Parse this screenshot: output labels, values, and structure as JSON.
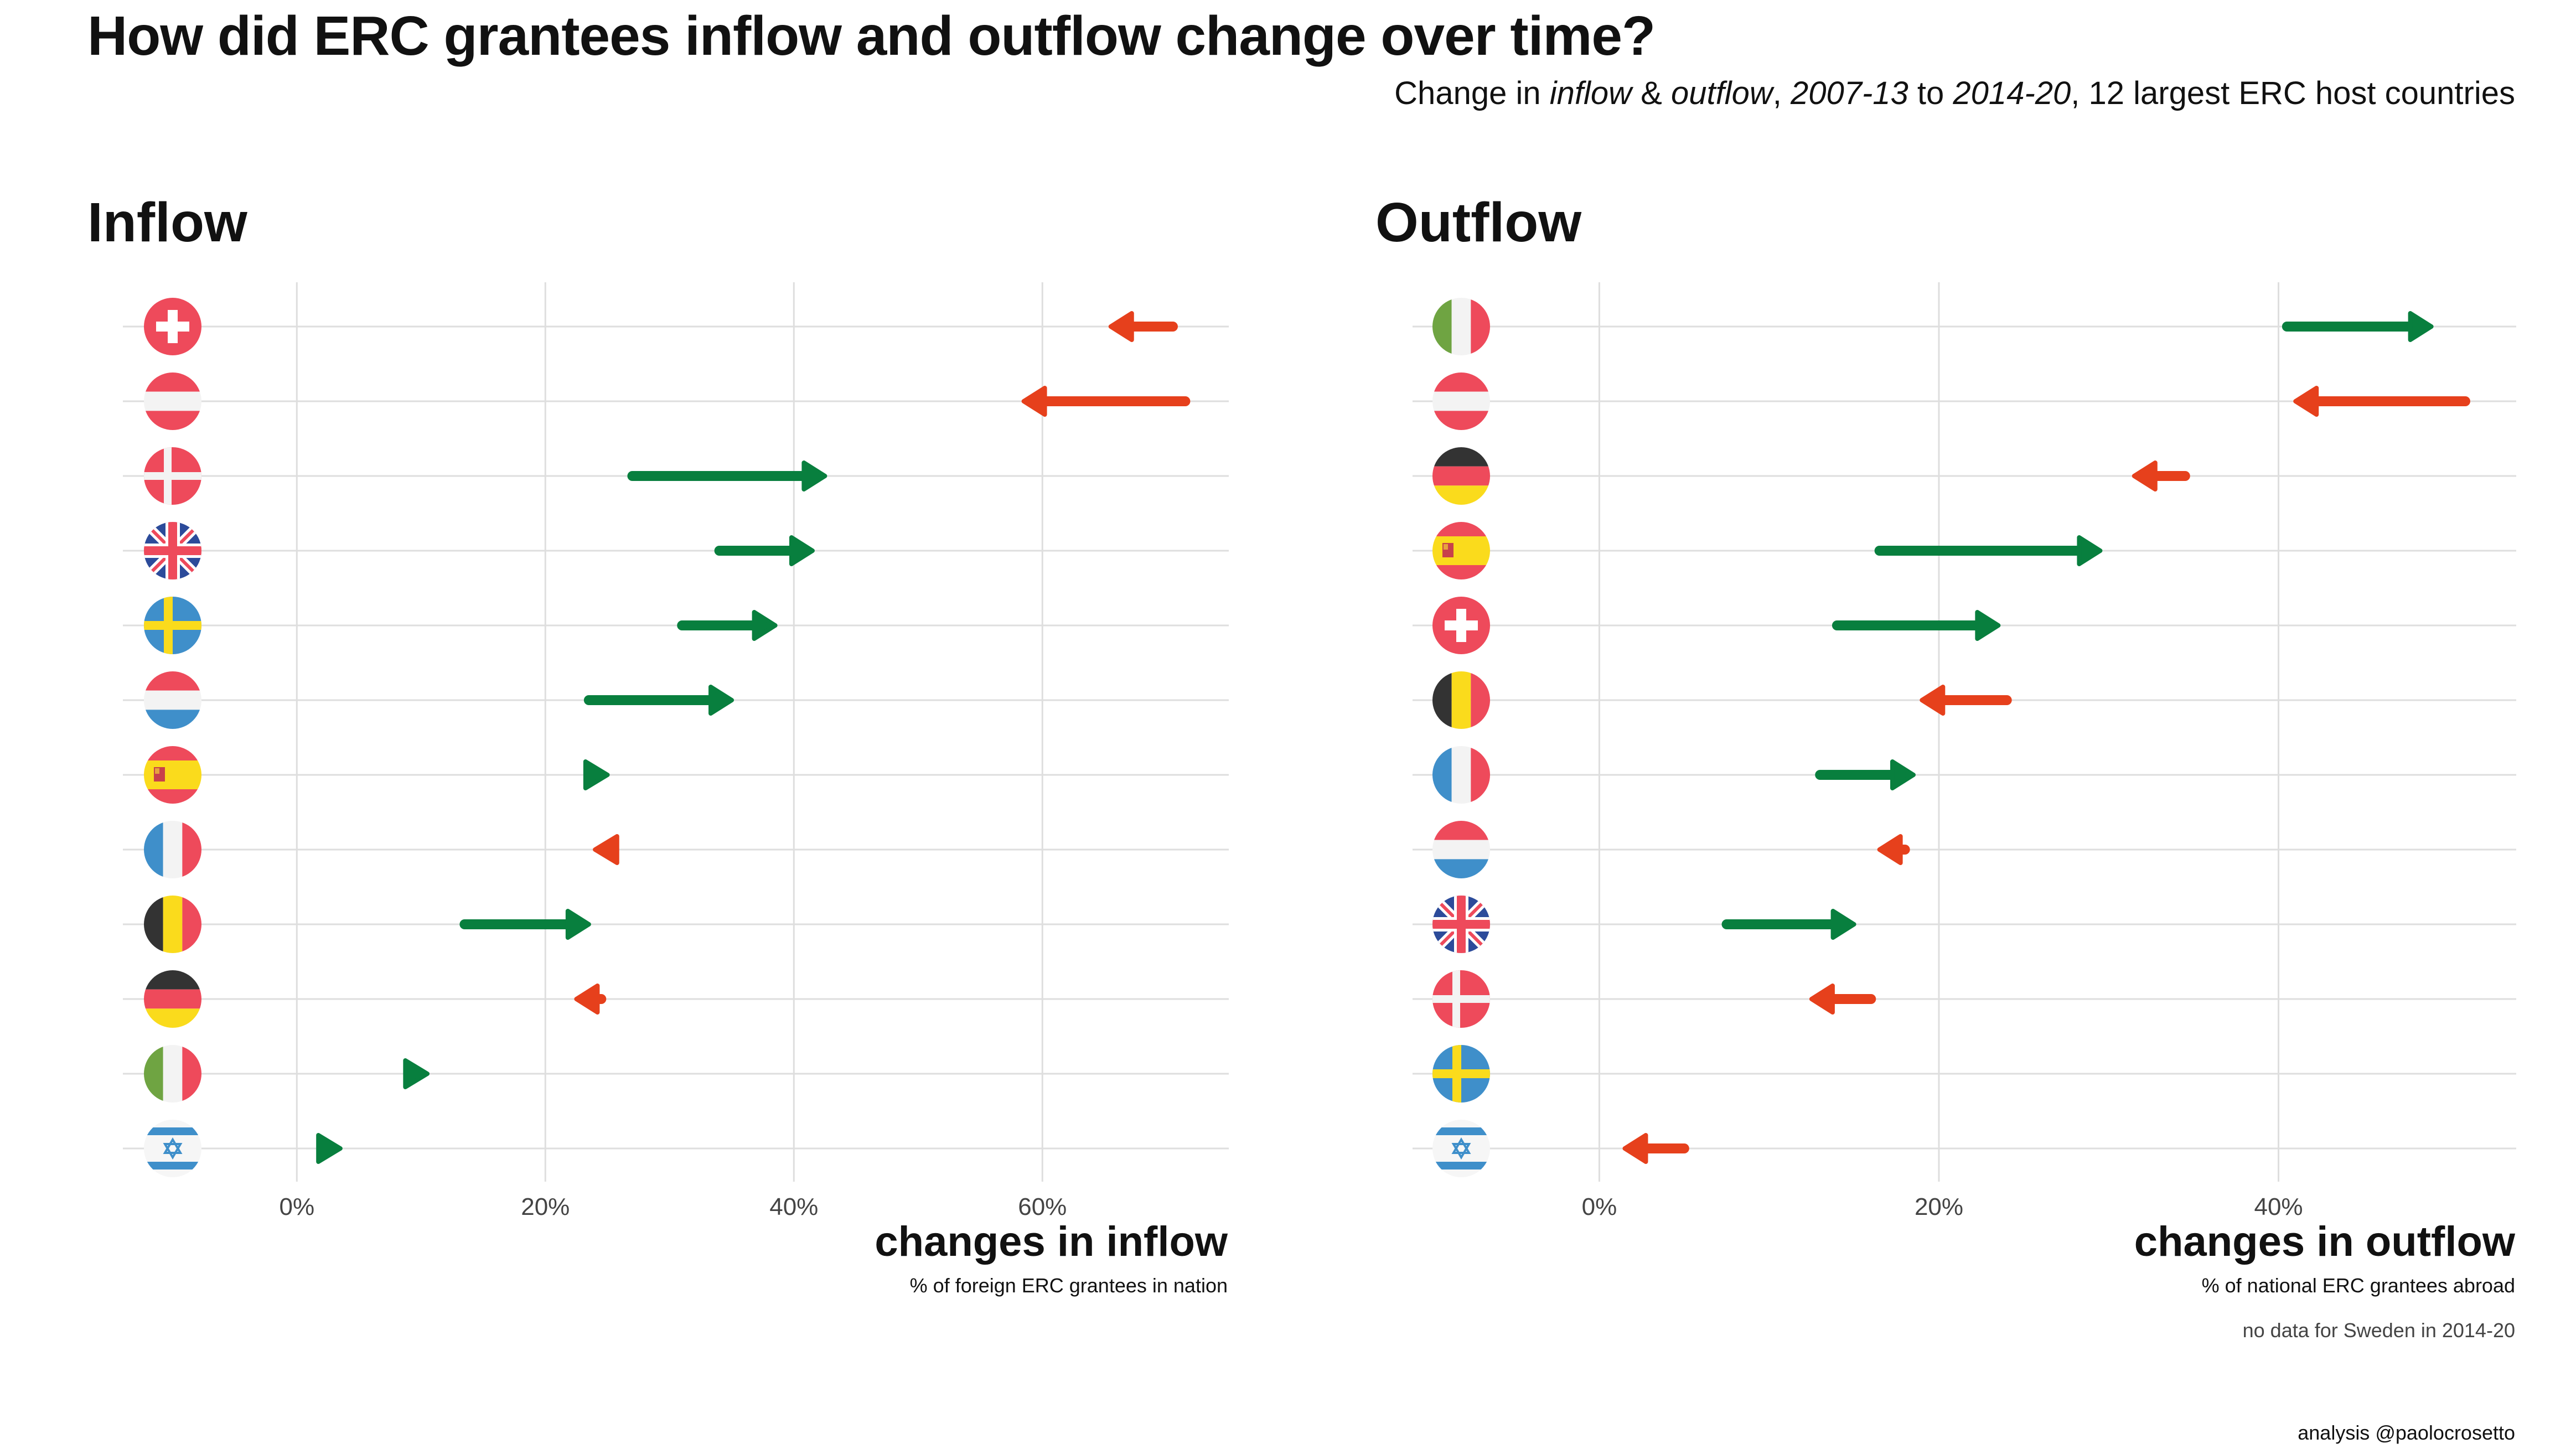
{
  "title": "How did ERC grantees inflow and outflow change over time?",
  "subtitle": {
    "prefix": "Change in ",
    "inflow_word": "inflow",
    "amp": " & ",
    "outflow_word": "outflow",
    "sep1": ", ",
    "period1": "2007-13",
    "to": " to ",
    "period2": "2014-20",
    "suffix": ", 12 largest ERC host countries"
  },
  "credit": "analysis @paolocrosetto",
  "colors": {
    "increase": "#087f3e",
    "decrease": "#e6401c",
    "grid": "#dedede"
  },
  "chart_data": [
    {
      "type": "dumbbell-arrow",
      "title": "Inflow",
      "xlabel": "changes in inflow",
      "xsublabel": "% of foreign ERC grantees in nation",
      "xlim": [
        -14,
        75
      ],
      "xticks": [
        0,
        20,
        40,
        60
      ],
      "tick_labels": [
        "0%",
        "20%",
        "40%",
        "60%"
      ],
      "rows": [
        {
          "country": "Switzerland",
          "flag": "switzerland-flag",
          "from": 70.5,
          "to": 65.5
        },
        {
          "country": "Austria",
          "flag": "austria-flag",
          "from": 71.5,
          "to": 58.5
        },
        {
          "country": "Denmark",
          "flag": "denmark-flag",
          "from": 27,
          "to": 42.5
        },
        {
          "country": "United Kingdom",
          "flag": "uk-flag",
          "from": 34,
          "to": 41.5
        },
        {
          "country": "Sweden",
          "flag": "sweden-flag",
          "from": 31,
          "to": 38.5
        },
        {
          "country": "Netherlands",
          "flag": "netherlands-flag",
          "from": 23.5,
          "to": 35
        },
        {
          "country": "Spain",
          "flag": "spain-flag",
          "from": 23.5,
          "to": 25
        },
        {
          "country": "France",
          "flag": "france-flag",
          "from": 25.5,
          "to": 24
        },
        {
          "country": "Belgium",
          "flag": "belgium-flag",
          "from": 13.5,
          "to": 23.5
        },
        {
          "country": "Germany",
          "flag": "germany-flag",
          "from": 24.5,
          "to": 22.5
        },
        {
          "country": "Italy",
          "flag": "italy-flag",
          "from": 9,
          "to": 10.5
        },
        {
          "country": "Israel",
          "flag": "israel-flag",
          "from": 2,
          "to": 3.5
        }
      ]
    },
    {
      "type": "dumbbell-arrow",
      "title": "Outflow",
      "xlabel": "changes in outflow",
      "xsublabel": "% of national ERC grantees abroad",
      "note": "no data for Sweden in 2014-20",
      "xlim": [
        -11,
        54
      ],
      "xticks": [
        0,
        20,
        40
      ],
      "tick_labels": [
        "0%",
        "20%",
        "40%"
      ],
      "rows": [
        {
          "country": "Italy",
          "flag": "italy-flag",
          "from": 40.5,
          "to": 49
        },
        {
          "country": "Austria",
          "flag": "austria-flag",
          "from": 51,
          "to": 41
        },
        {
          "country": "Germany",
          "flag": "germany-flag",
          "from": 34.5,
          "to": 31.5
        },
        {
          "country": "Spain",
          "flag": "spain-flag",
          "from": 16.5,
          "to": 29.5
        },
        {
          "country": "Switzerland",
          "flag": "switzerland-flag",
          "from": 14,
          "to": 23.5
        },
        {
          "country": "Belgium",
          "flag": "belgium-flag",
          "from": 24,
          "to": 19
        },
        {
          "country": "France",
          "flag": "france-flag",
          "from": 13,
          "to": 18.5
        },
        {
          "country": "Netherlands",
          "flag": "netherlands-flag",
          "from": 18,
          "to": 16.5
        },
        {
          "country": "United Kingdom",
          "flag": "uk-flag",
          "from": 7.5,
          "to": 15
        },
        {
          "country": "Denmark",
          "flag": "denmark-flag",
          "from": 16,
          "to": 12.5
        },
        {
          "country": "Sweden",
          "flag": "sweden-flag",
          "from": null,
          "to": null
        },
        {
          "country": "Israel",
          "flag": "israel-flag",
          "from": 5,
          "to": 1.5
        }
      ]
    }
  ]
}
